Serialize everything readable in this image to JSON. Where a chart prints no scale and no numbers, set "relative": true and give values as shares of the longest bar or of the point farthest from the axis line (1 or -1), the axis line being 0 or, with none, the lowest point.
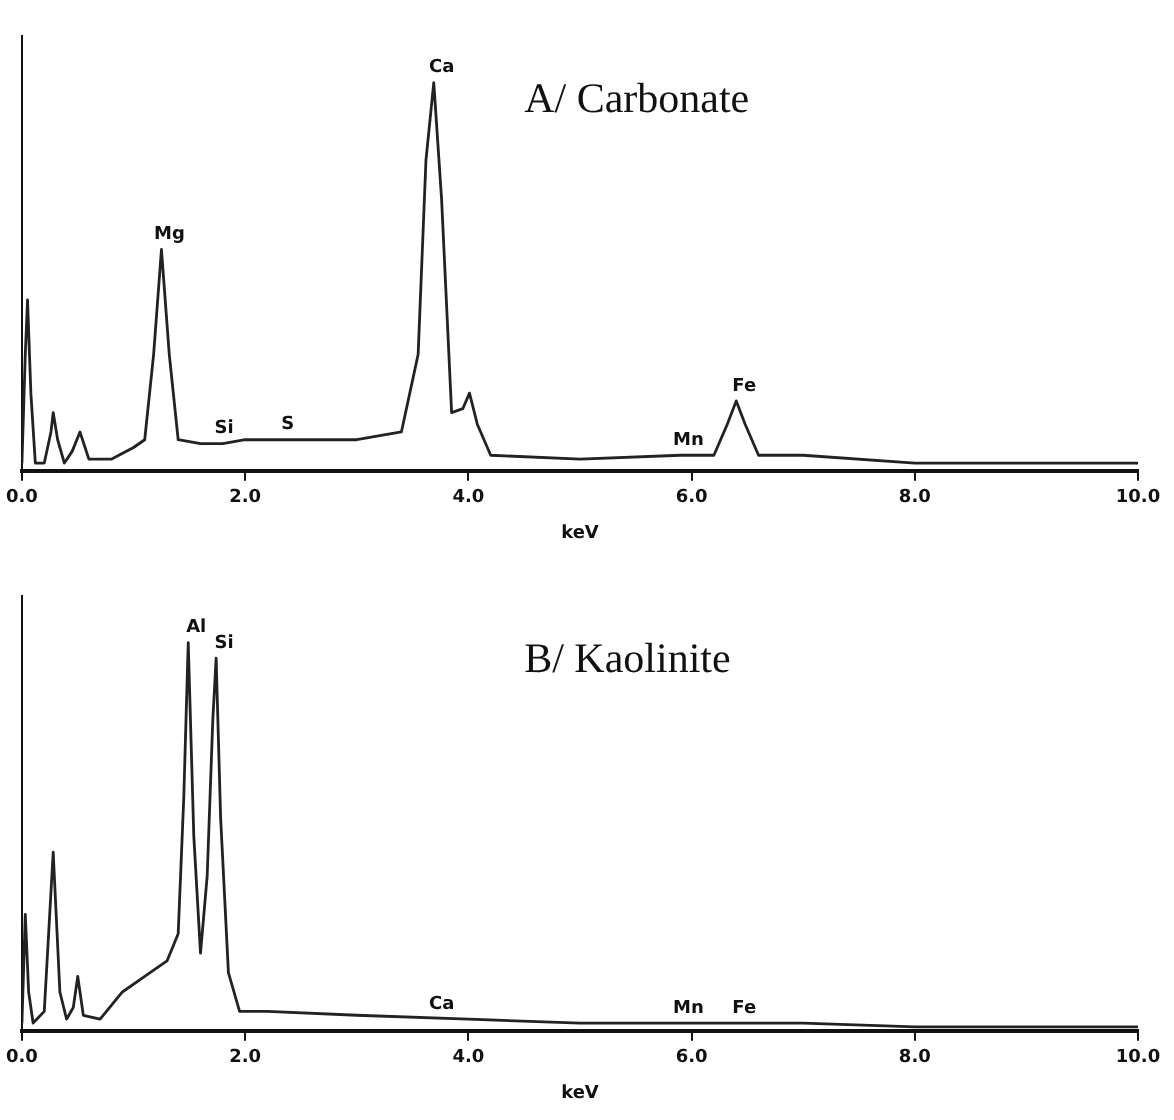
{
  "chart_data": [
    {
      "type": "line",
      "title": "A/ Carbonate",
      "xlabel": "keV",
      "relative": true,
      "xlim": [
        0,
        10
      ],
      "xticks": [
        {
          "value": 0,
          "label": "0.0"
        },
        {
          "value": 2,
          "label": "2.0"
        },
        {
          "value": 4,
          "label": "4.0"
        },
        {
          "value": 6,
          "label": "6.0"
        },
        {
          "value": 8,
          "label": "8.0"
        },
        {
          "value": 10,
          "label": "10.0"
        }
      ],
      "grid": false,
      "marker": "none",
      "x": [
        0,
        0.03,
        0.05,
        0.08,
        0.12,
        0.2,
        0.26,
        0.28,
        0.32,
        0.38,
        0.45,
        0.52,
        0.6,
        0.8,
        1.0,
        1.1,
        1.18,
        1.25,
        1.32,
        1.4,
        1.6,
        1.8,
        2.0,
        2.5,
        3.0,
        3.4,
        3.55,
        3.62,
        3.69,
        3.76,
        3.85,
        3.95,
        4.01,
        4.08,
        4.2,
        5.0,
        5.9,
        6.2,
        6.32,
        6.4,
        6.48,
        6.6,
        7.0,
        8.0,
        9.0,
        10.0
      ],
      "series": [
        {
          "color": "#222222",
          "values": [
            0.02,
            0.3,
            0.44,
            0.2,
            0.02,
            0.02,
            0.1,
            0.15,
            0.08,
            0.02,
            0.05,
            0.1,
            0.03,
            0.03,
            0.06,
            0.08,
            0.3,
            0.57,
            0.3,
            0.08,
            0.07,
            0.07,
            0.08,
            0.08,
            0.08,
            0.1,
            0.3,
            0.8,
            1,
            0.7,
            0.15,
            0.16,
            0.2,
            0.12,
            0.04,
            0.03,
            0.04,
            0.04,
            0.12,
            0.18,
            0.12,
            0.04,
            0.04,
            0.02,
            0.02,
            0.02
          ]
        }
      ],
      "annotations": [
        {
          "text": "Mg",
          "x": 1.25,
          "y": 0.57
        },
        {
          "text": "Si",
          "x": 1.74,
          "y": 0.07
        },
        {
          "text": "S",
          "x": 2.31,
          "y": 0.08
        },
        {
          "text": "Ca",
          "x": 3.69,
          "y": 1
        },
        {
          "text": "Mn",
          "x": 5.9,
          "y": 0.04
        },
        {
          "text": "Fe",
          "x": 6.4,
          "y": 0.18
        }
      ]
    },
    {
      "type": "line",
      "title": "B/ Kaolinite",
      "xlabel": "keV",
      "relative": true,
      "xlim": [
        0,
        10
      ],
      "xticks": [
        {
          "value": 0,
          "label": "0.0"
        },
        {
          "value": 2,
          "label": "2.0"
        },
        {
          "value": 4,
          "label": "4.0"
        },
        {
          "value": 6,
          "label": "6.0"
        },
        {
          "value": 8,
          "label": "8.0"
        },
        {
          "value": 10,
          "label": "10.0"
        }
      ],
      "grid": false,
      "marker": "none",
      "x": [
        0,
        0.03,
        0.06,
        0.1,
        0.2,
        0.28,
        0.34,
        0.4,
        0.46,
        0.5,
        0.55,
        0.7,
        0.9,
        1.1,
        1.3,
        1.4,
        1.45,
        1.49,
        1.54,
        1.6,
        1.66,
        1.71,
        1.74,
        1.78,
        1.85,
        1.95,
        2.2,
        3.0,
        4.0,
        5.0,
        6.0,
        7.0,
        8.0,
        9.0,
        10.0
      ],
      "series": [
        {
          "color": "#222222",
          "values": [
            0.02,
            0.3,
            0.1,
            0.02,
            0.05,
            0.46,
            0.1,
            0.03,
            0.06,
            0.14,
            0.04,
            0.03,
            0.1,
            0.14,
            0.18,
            0.25,
            0.6,
            1,
            0.5,
            0.2,
            0.4,
            0.8,
            0.96,
            0.55,
            0.15,
            0.05,
            0.05,
            0.04,
            0.03,
            0.02,
            0.02,
            0.02,
            0.01,
            0.01,
            0.01
          ]
        }
      ],
      "annotations": [
        {
          "text": "Al",
          "x": 1.49,
          "y": 1
        },
        {
          "text": "Si",
          "x": 1.74,
          "y": 0.96
        },
        {
          "text": "Ca",
          "x": 3.69,
          "y": 0.03
        },
        {
          "text": "Mn",
          "x": 5.9,
          "y": 0.02
        },
        {
          "text": "Fe",
          "x": 6.4,
          "y": 0.02
        }
      ]
    }
  ]
}
